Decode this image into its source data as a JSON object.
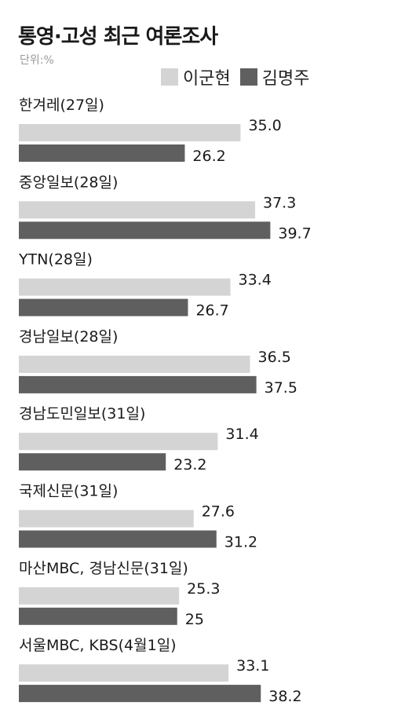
{
  "header": {
    "title": "통영·고성 최근 여론조사",
    "unit": "단위:%"
  },
  "colors": {
    "이군현": "#d4d4d4",
    "김명주": "#5f5f5f"
  },
  "chart_data": {
    "type": "bar",
    "orientation": "horizontal",
    "categories": [
      "한겨레(27일)",
      "중앙일보(28일)",
      "YTN(28일)",
      "경남일보(28일)",
      "경남도민일보(31일)",
      "국제신문(31일)",
      "마산MBC, 경남신문(31일)",
      "서울MBC, KBS(4월1일)"
    ],
    "series": [
      {
        "name": "이군현",
        "values": [
          35.0,
          37.3,
          33.4,
          36.5,
          31.4,
          27.6,
          25.3,
          33.1
        ],
        "labels": [
          "35.0",
          "37.3",
          "33.4",
          "36.5",
          "31.4",
          "27.6",
          "25.3",
          "33.1"
        ]
      },
      {
        "name": "김명주",
        "values": [
          26.2,
          39.7,
          26.7,
          37.5,
          23.2,
          31.2,
          25,
          38.2
        ],
        "labels": [
          "26.2",
          "39.7",
          "26.7",
          "37.5",
          "23.2",
          "31.2",
          "25",
          "38.2"
        ]
      }
    ],
    "legend": "top-right",
    "grid": false
  }
}
